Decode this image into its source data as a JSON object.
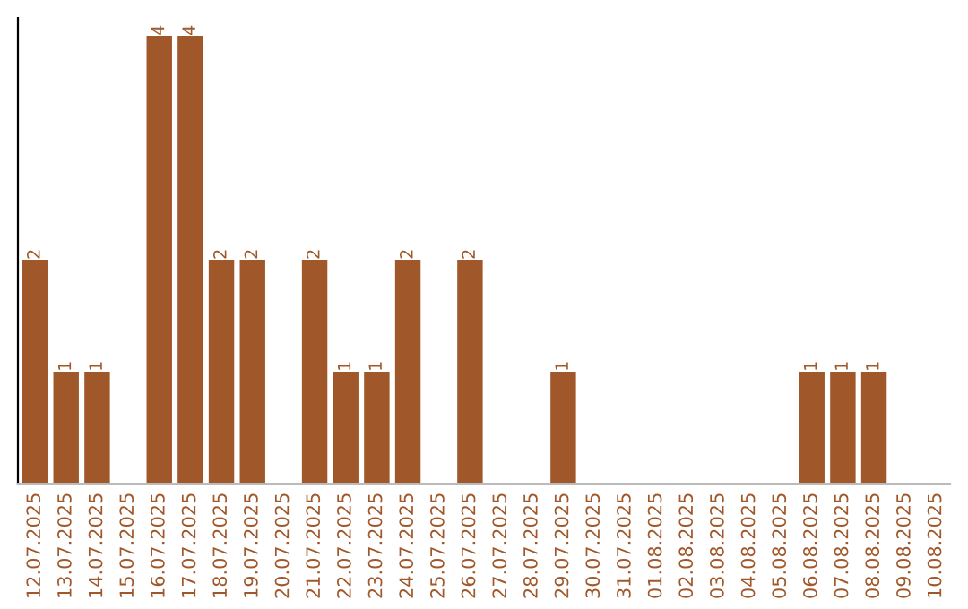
{
  "chart_data": {
    "type": "bar",
    "categories": [
      "12.07.2025",
      "13.07.2025",
      "14.07.2025",
      "15.07.2025",
      "16.07.2025",
      "17.07.2025",
      "18.07.2025",
      "19.07.2025",
      "20.07.2025",
      "21.07.2025",
      "22.07.2025",
      "23.07.2025",
      "24.07.2025",
      "25.07.2025",
      "26.07.2025",
      "27.07.2025",
      "28.07.2025",
      "29.07.2025",
      "30.07.2025",
      "31.07.2025",
      "01.08.2025",
      "02.08.2025",
      "03.08.2025",
      "04.08.2025",
      "05.08.2025",
      "06.08.2025",
      "07.08.2025",
      "08.08.2025",
      "09.08.2025",
      "10.08.2025"
    ],
    "values": [
      2,
      1,
      1,
      0,
      4,
      4,
      2,
      2,
      0,
      2,
      1,
      1,
      2,
      0,
      2,
      0,
      0,
      1,
      0,
      0,
      0,
      0,
      0,
      0,
      0,
      1,
      1,
      1,
      0,
      0
    ],
    "value_labels": [
      "2",
      "1",
      "1",
      null,
      "4",
      "4",
      "2",
      "2",
      null,
      "2",
      "1",
      "1",
      "2",
      null,
      "2",
      null,
      null,
      "1",
      null,
      null,
      null,
      null,
      null,
      null,
      null,
      "1",
      "1",
      "1",
      null,
      null
    ],
    "color": "#a0582a",
    "tick_labels": "x",
    "grid": false,
    "legend": false
  }
}
